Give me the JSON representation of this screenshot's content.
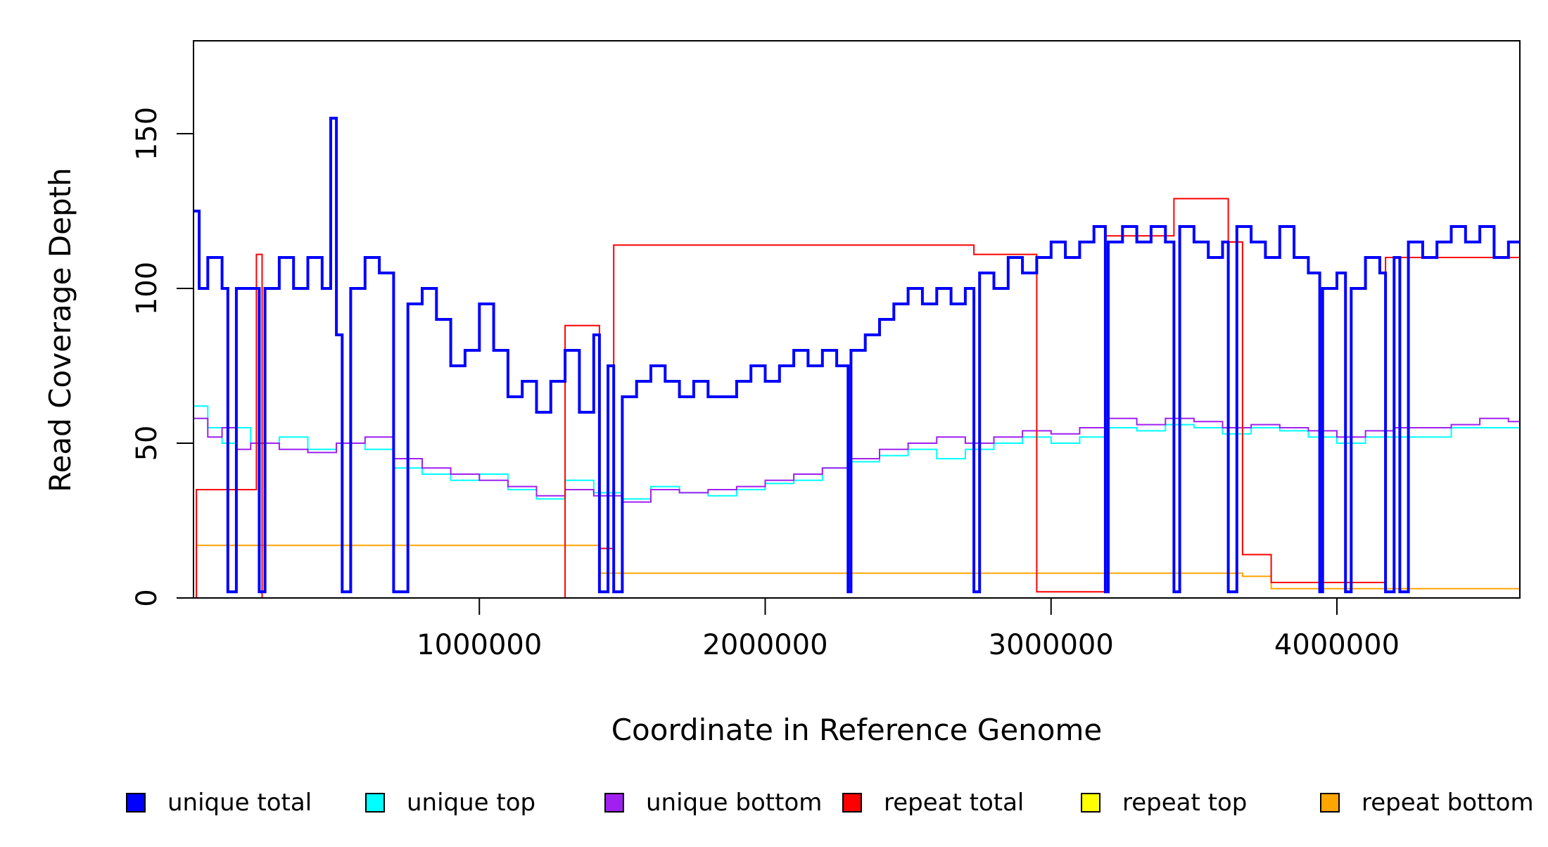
{
  "chart_data": {
    "type": "line",
    "title": "",
    "xlabel": "Coordinate in Reference Genome",
    "ylabel": "Read Coverage Depth",
    "xlim": [
      0,
      4640000
    ],
    "ylim": [
      0,
      180
    ],
    "x_ticks": [
      1000000,
      2000000,
      3000000,
      4000000
    ],
    "x_tick_labels": [
      "1000000",
      "2000000",
      "3000000",
      "4000000"
    ],
    "y_ticks": [
      0,
      50,
      100,
      150
    ],
    "y_tick_labels": [
      "0",
      "50",
      "100",
      "150"
    ],
    "grid": false,
    "legend": {
      "placement": "bottom",
      "entries": [
        {
          "label": "unique total",
          "color": "#0000ff"
        },
        {
          "label": "unique top",
          "color": "#00ffff"
        },
        {
          "label": "unique bottom",
          "color": "#a020f0"
        },
        {
          "label": "repeat total",
          "color": "#ff0000"
        },
        {
          "label": "repeat top",
          "color": "#ffff00"
        },
        {
          "label": "repeat bottom",
          "color": "#ffa500"
        }
      ]
    },
    "series": [
      {
        "name": "unique total",
        "color": "#0000ff",
        "x": [
          0,
          20000,
          50000,
          100000,
          120000,
          150000,
          200000,
          230000,
          250000,
          300000,
          350000,
          400000,
          450000,
          480000,
          500000,
          520000,
          550000,
          600000,
          650000,
          700000,
          750000,
          800000,
          850000,
          900000,
          950000,
          1000000,
          1050000,
          1100000,
          1150000,
          1200000,
          1250000,
          1300000,
          1350000,
          1400000,
          1420000,
          1450000,
          1470000,
          1500000,
          1550000,
          1600000,
          1650000,
          1700000,
          1750000,
          1800000,
          1850000,
          1900000,
          1950000,
          2000000,
          2050000,
          2100000,
          2150000,
          2200000,
          2250000,
          2290000,
          2300000,
          2350000,
          2400000,
          2450000,
          2500000,
          2550000,
          2600000,
          2650000,
          2700000,
          2730000,
          2750000,
          2800000,
          2850000,
          2900000,
          2950000,
          3000000,
          3050000,
          3100000,
          3150000,
          3190000,
          3200000,
          3250000,
          3300000,
          3350000,
          3400000,
          3430000,
          3450000,
          3500000,
          3550000,
          3600000,
          3620000,
          3650000,
          3700000,
          3750000,
          3800000,
          3850000,
          3900000,
          3940000,
          3950000,
          4000000,
          4030000,
          4050000,
          4100000,
          4150000,
          4170000,
          4200000,
          4220000,
          4250000,
          4300000,
          4350000,
          4400000,
          4450000,
          4500000,
          4550000,
          4600000,
          4640000
        ],
        "y": [
          125,
          100,
          110,
          100,
          2,
          100,
          100,
          2,
          100,
          110,
          100,
          110,
          100,
          155,
          85,
          2,
          100,
          110,
          105,
          2,
          95,
          100,
          90,
          75,
          80,
          95,
          80,
          65,
          70,
          60,
          70,
          80,
          60,
          85,
          2,
          75,
          2,
          65,
          70,
          75,
          70,
          65,
          70,
          65,
          65,
          70,
          75,
          70,
          75,
          80,
          75,
          80,
          75,
          2,
          80,
          85,
          90,
          95,
          100,
          95,
          100,
          95,
          100,
          2,
          105,
          100,
          110,
          105,
          110,
          115,
          110,
          115,
          120,
          2,
          115,
          120,
          115,
          120,
          115,
          2,
          120,
          115,
          110,
          115,
          2,
          120,
          115,
          110,
          120,
          110,
          105,
          2,
          100,
          105,
          2,
          100,
          110,
          105,
          2,
          110,
          2,
          115,
          110,
          115,
          120,
          115,
          120,
          110,
          115,
          115
        ]
      },
      {
        "name": "unique top",
        "color": "#00ffff",
        "x": [
          0,
          50000,
          100000,
          150000,
          200000,
          300000,
          400000,
          500000,
          600000,
          700000,
          800000,
          900000,
          1000000,
          1100000,
          1200000,
          1300000,
          1400000,
          1500000,
          1600000,
          1700000,
          1800000,
          1900000,
          2000000,
          2100000,
          2200000,
          2300000,
          2400000,
          2500000,
          2600000,
          2700000,
          2800000,
          2900000,
          3000000,
          3100000,
          3200000,
          3300000,
          3400000,
          3500000,
          3600000,
          3700000,
          3800000,
          3900000,
          4000000,
          4100000,
          4200000,
          4300000,
          4400000,
          4500000,
          4600000,
          4640000
        ],
        "y": [
          62,
          55,
          50,
          55,
          50,
          52,
          48,
          50,
          48,
          42,
          40,
          38,
          40,
          35,
          32,
          38,
          34,
          32,
          36,
          34,
          33,
          35,
          37,
          38,
          42,
          44,
          46,
          48,
          45,
          48,
          50,
          52,
          50,
          52,
          55,
          54,
          56,
          55,
          53,
          55,
          54,
          52,
          50,
          52,
          52,
          52,
          55,
          55,
          55,
          58
        ]
      },
      {
        "name": "unique bottom",
        "color": "#a020f0",
        "x": [
          0,
          50000,
          100000,
          150000,
          200000,
          300000,
          400000,
          500000,
          600000,
          700000,
          800000,
          900000,
          1000000,
          1100000,
          1200000,
          1300000,
          1400000,
          1500000,
          1600000,
          1700000,
          1800000,
          1900000,
          2000000,
          2100000,
          2200000,
          2300000,
          2400000,
          2500000,
          2600000,
          2700000,
          2800000,
          2900000,
          3000000,
          3100000,
          3200000,
          3300000,
          3400000,
          3500000,
          3600000,
          3700000,
          3800000,
          3900000,
          4000000,
          4100000,
          4200000,
          4300000,
          4400000,
          4500000,
          4600000,
          4640000
        ],
        "y": [
          58,
          52,
          55,
          48,
          50,
          48,
          47,
          50,
          52,
          45,
          42,
          40,
          38,
          36,
          33,
          35,
          33,
          31,
          35,
          34,
          35,
          36,
          38,
          40,
          42,
          45,
          48,
          50,
          52,
          50,
          52,
          54,
          53,
          55,
          58,
          56,
          58,
          57,
          55,
          56,
          55,
          54,
          52,
          54,
          55,
          55,
          56,
          58,
          57,
          60
        ]
      },
      {
        "name": "repeat total",
        "color": "#ff0000",
        "x": [
          0,
          10000,
          220000,
          240000,
          1300000,
          1420000,
          1470000,
          2730000,
          2950000,
          3190000,
          3430000,
          3620000,
          3670000,
          3770000,
          4170000,
          4640000
        ],
        "y": [
          0,
          35,
          111,
          0,
          88,
          16,
          114,
          111,
          2,
          117,
          129,
          115,
          14,
          5,
          110,
          0
        ]
      },
      {
        "name": "repeat top",
        "color": "#ffff00",
        "x": [
          0,
          10000,
          1420000,
          3670000,
          4640000
        ],
        "y": [
          0,
          0,
          0,
          0,
          0
        ]
      },
      {
        "name": "repeat bottom",
        "color": "#ffa500",
        "x": [
          0,
          10000,
          1420000,
          3670000,
          3770000,
          4640000
        ],
        "y": [
          0,
          17,
          8,
          7,
          3,
          0
        ]
      }
    ]
  }
}
